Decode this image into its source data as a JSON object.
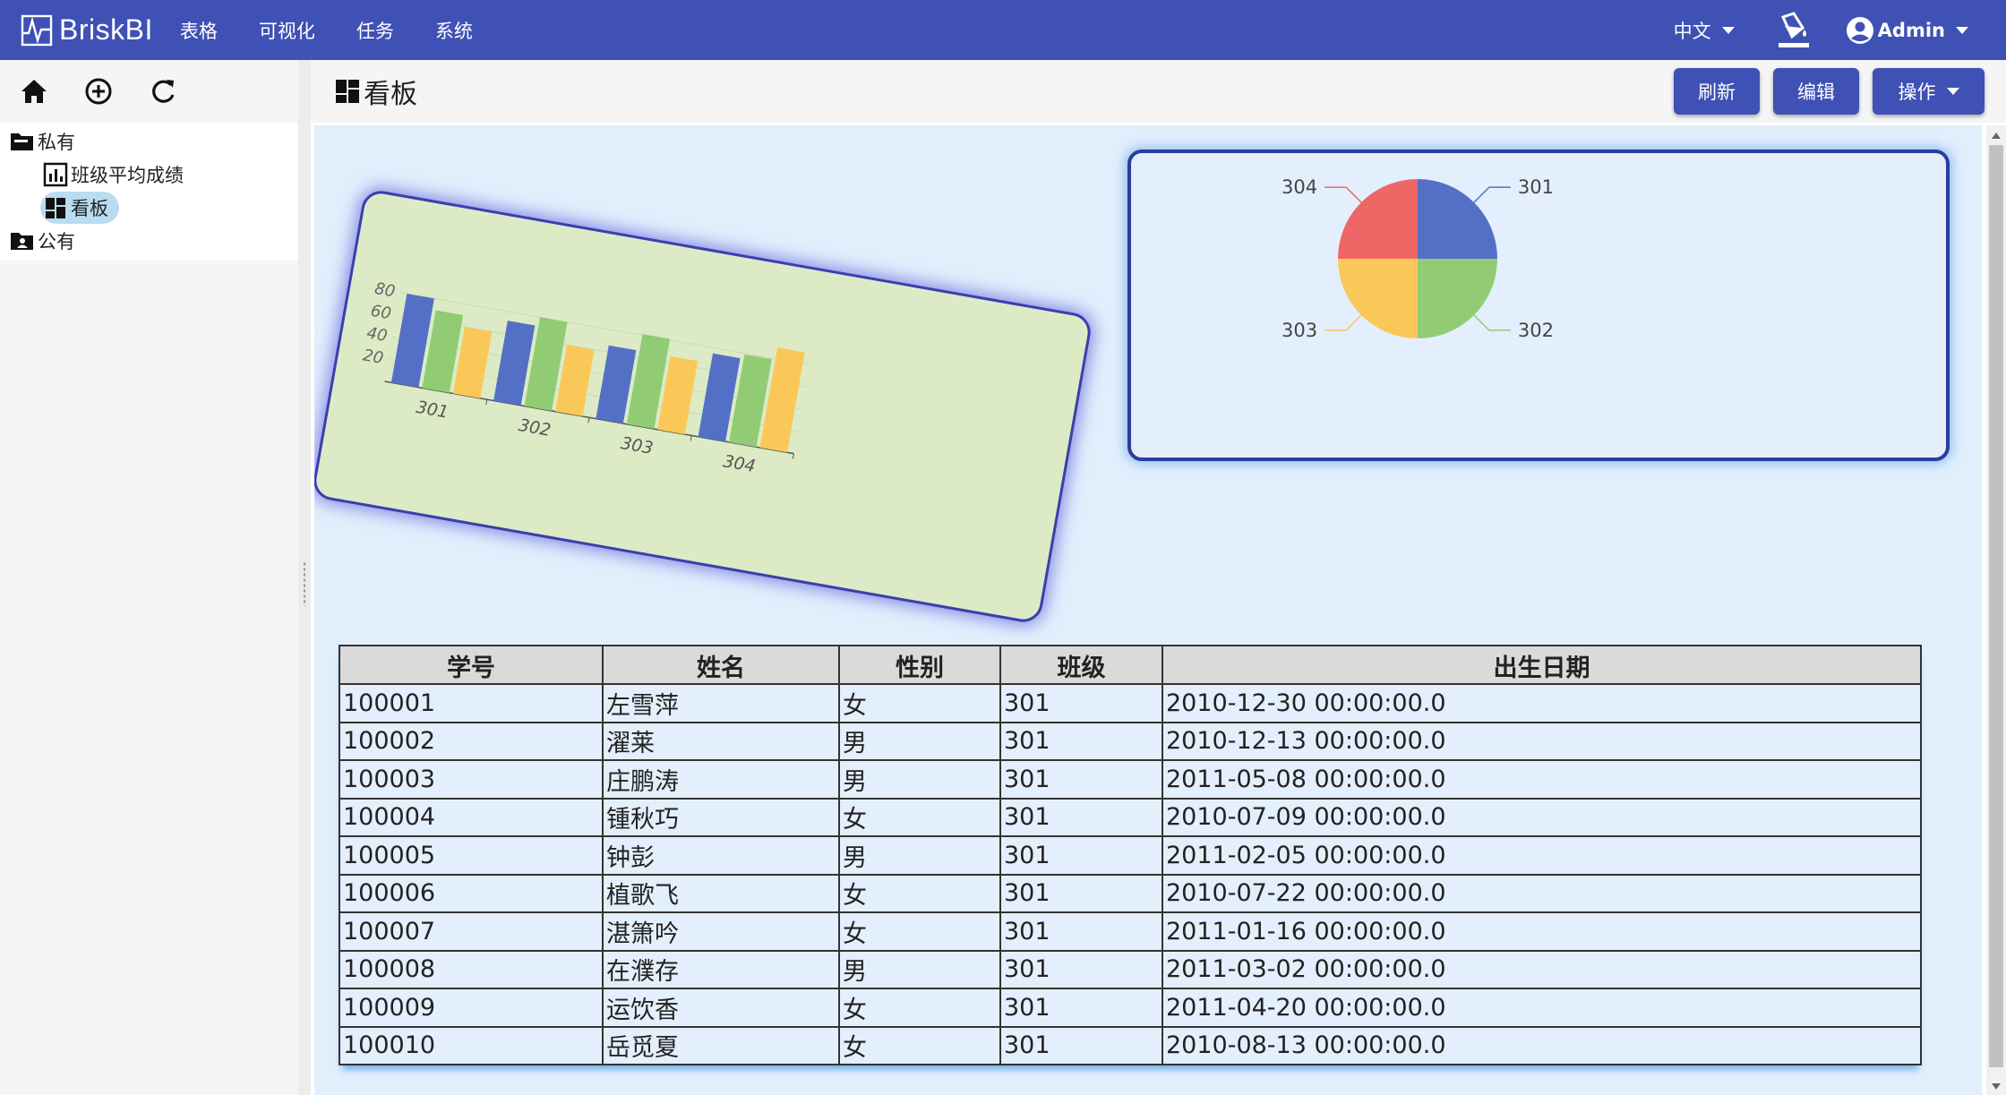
{
  "app": {
    "brand": "BriskBI",
    "nav": [
      "表格",
      "可视化",
      "任务",
      "系统"
    ],
    "language": "中文",
    "user": "Admin",
    "colors": {
      "navbar": "#3f51b5",
      "accent": "#3f51b5",
      "canvas": "#e1effc"
    }
  },
  "sidebar": {
    "toolbar": [
      {
        "icon": "home-icon"
      },
      {
        "icon": "add-circle-icon"
      },
      {
        "icon": "refresh-icon"
      }
    ],
    "tree": {
      "private_label": "私有",
      "items": [
        {
          "label": "班级平均成绩",
          "icon": "bar-chart-icon"
        },
        {
          "label": "看板",
          "icon": "dashboard-icon",
          "active": true
        }
      ],
      "public_label": "公有"
    }
  },
  "main": {
    "title": "看板",
    "actions": {
      "refresh": "刷新",
      "edit": "编辑",
      "ops": "操作"
    }
  },
  "chart_data": [
    {
      "type": "bar",
      "categories": [
        "301",
        "302",
        "303",
        "304"
      ],
      "series": [
        {
          "values": [
            80,
            72,
            66,
            75
          ],
          "color": "#5470c6"
        },
        {
          "values": [
            70,
            80,
            81,
            79
          ],
          "color": "#91cc75"
        },
        {
          "values": [
            60,
            60,
            66,
            90
          ],
          "color": "#fac858"
        }
      ],
      "yticks": [
        "20",
        "40",
        "60",
        "80"
      ],
      "ylim": [
        0,
        100
      ],
      "grid": true,
      "note": "card rotated ~10 degrees"
    },
    {
      "type": "pie",
      "labels": [
        "301",
        "302",
        "303",
        "304"
      ],
      "values": [
        25,
        25,
        25,
        25
      ],
      "colors": [
        "#5470c6",
        "#91cc75",
        "#fac858",
        "#ee6666"
      ]
    }
  ],
  "table": {
    "columns": [
      "学号",
      "姓名",
      "性别",
      "班级",
      "出生日期"
    ],
    "rows": [
      [
        "100001",
        "左雪萍",
        "女",
        "301",
        "2010-12-30 00:00:00.0"
      ],
      [
        "100002",
        "濯莱",
        "男",
        "301",
        "2010-12-13 00:00:00.0"
      ],
      [
        "100003",
        "庄鹏涛",
        "男",
        "301",
        "2011-05-08 00:00:00.0"
      ],
      [
        "100004",
        "锺秋巧",
        "女",
        "301",
        "2010-07-09 00:00:00.0"
      ],
      [
        "100005",
        "钟彭",
        "男",
        "301",
        "2011-02-05 00:00:00.0"
      ],
      [
        "100006",
        "植歌飞",
        "女",
        "301",
        "2010-07-22 00:00:00.0"
      ],
      [
        "100007",
        "湛箫吟",
        "女",
        "301",
        "2011-01-16 00:00:00.0"
      ],
      [
        "100008",
        "在濮存",
        "男",
        "301",
        "2011-03-02 00:00:00.0"
      ],
      [
        "100009",
        "运饮香",
        "女",
        "301",
        "2011-04-20 00:00:00.0"
      ],
      [
        "100010",
        "岳觅夏",
        "女",
        "301",
        "2010-08-13 00:00:00.0"
      ]
    ]
  }
}
